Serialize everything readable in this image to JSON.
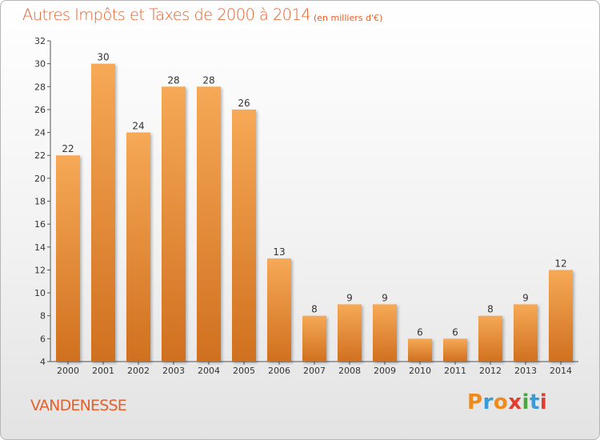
{
  "header": {
    "title": "Autres Impôts et Taxes de 2000 à 2014",
    "subtitle": "(en milliers d'€)"
  },
  "footer": {
    "commune": "VANDENESSE",
    "logo_text": "Proxiti"
  },
  "colors": {
    "title": "#e4612c",
    "bar_light": "#f6a956",
    "bar_dark": "#d0701f",
    "logo": [
      "#f08a1c",
      "#3a9ad9",
      "#f08a1c",
      "#e03c2f",
      "#4aa843",
      "#3a9ad9",
      "#e03c2f"
    ]
  },
  "chart_data": {
    "type": "bar",
    "title": "Autres Impôts et Taxes de 2000 à 2014",
    "subtitle": "(en milliers d'€)",
    "xlabel": "",
    "ylabel": "",
    "categories": [
      "2000",
      "2001",
      "2002",
      "2003",
      "2004",
      "2005",
      "2006",
      "2007",
      "2008",
      "2009",
      "2010",
      "2011",
      "2012",
      "2013",
      "2014"
    ],
    "values": [
      22,
      30,
      24,
      28,
      28,
      26,
      13,
      8,
      9,
      9,
      6,
      6,
      8,
      9,
      12
    ],
    "ylim": [
      4,
      32
    ],
    "yticks": [
      4,
      6,
      8,
      10,
      12,
      14,
      16,
      18,
      20,
      22,
      24,
      26,
      28,
      30,
      32
    ],
    "grid": false,
    "legend": "none",
    "data_labels": true
  }
}
